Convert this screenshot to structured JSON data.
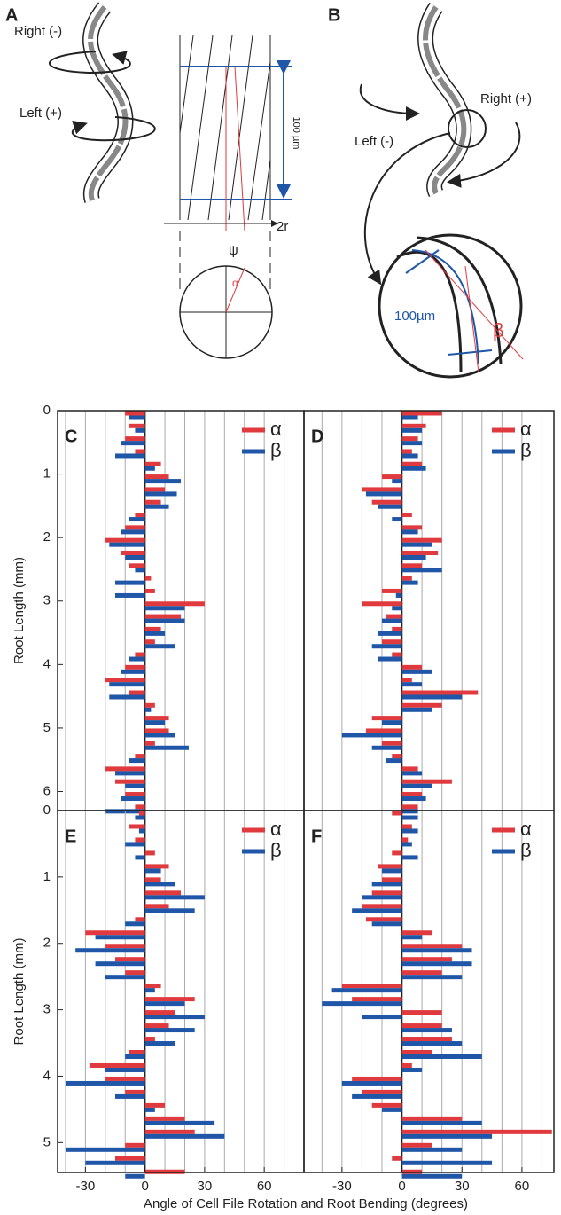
{
  "diagrams": {
    "A": {
      "label": "A",
      "right": "Right (-)",
      "left": "Left (+)",
      "length": "100 µm",
      "diameter": "2r",
      "psi": "ψ",
      "alpha": "α"
    },
    "B": {
      "label": "B",
      "left": "Left (-)",
      "right": "Right (+)",
      "length": "100µm",
      "beta": "β"
    }
  },
  "chart_data": [
    {
      "type": "bar",
      "panel": "C",
      "orientation": "horizontal",
      "x": [
        0,
        0.2,
        0.4,
        0.6,
        0.8,
        1.0,
        1.2,
        1.4,
        1.6,
        1.8,
        2.0,
        2.2,
        2.4,
        2.6,
        2.8,
        3.0,
        3.2,
        3.4,
        3.6,
        3.8,
        4.0,
        4.2,
        4.4,
        4.6,
        4.8,
        5.0,
        5.2,
        5.4,
        5.6,
        5.8,
        6.0,
        6.2
      ],
      "series": [
        {
          "name": "α",
          "color": "#e03a3e",
          "values": [
            -10,
            -8,
            -10,
            -5,
            8,
            12,
            10,
            8,
            -5,
            -10,
            -20,
            -12,
            -8,
            3,
            5,
            30,
            18,
            8,
            5,
            -5,
            -10,
            -20,
            -8,
            5,
            12,
            12,
            5,
            -5,
            -20,
            -15,
            -10,
            -5
          ]
        },
        {
          "name": "β",
          "color": "#1f56a8",
          "values": [
            -8,
            -5,
            -12,
            -15,
            5,
            18,
            16,
            12,
            -8,
            -12,
            -18,
            -10,
            -5,
            -15,
            -15,
            20,
            20,
            10,
            15,
            -8,
            -12,
            -18,
            -18,
            3,
            10,
            15,
            22,
            -8,
            -15,
            -10,
            -12,
            -20
          ]
        }
      ],
      "xlim": [
        -44,
        80
      ],
      "xgrid": [
        -40,
        -30,
        -20,
        -10,
        10,
        20,
        30,
        40,
        50,
        60,
        70
      ],
      "ylim": [
        0,
        6.3
      ],
      "yticks": [
        0,
        1,
        2,
        3,
        4,
        5,
        6
      ],
      "ylabel": "Root Length (mm)"
    },
    {
      "type": "bar",
      "panel": "D",
      "orientation": "horizontal",
      "x": [
        0,
        0.2,
        0.4,
        0.6,
        0.8,
        1.0,
        1.2,
        1.4,
        1.6,
        1.8,
        2.0,
        2.2,
        2.4,
        2.6,
        2.8,
        3.0,
        3.2,
        3.4,
        3.6,
        3.8,
        4.0,
        4.2,
        4.4,
        4.6,
        4.8,
        5.0,
        5.2,
        5.4,
        5.6,
        5.8,
        6.0,
        6.2
      ],
      "series": [
        {
          "name": "α",
          "color": "#e03a3e",
          "values": [
            20,
            12,
            8,
            5,
            10,
            -10,
            -20,
            -15,
            5,
            10,
            20,
            18,
            10,
            5,
            -10,
            -20,
            -8,
            -5,
            -10,
            -5,
            10,
            5,
            38,
            20,
            -15,
            -18,
            -10,
            -5,
            8,
            25,
            10,
            8
          ]
        },
        {
          "name": "β",
          "color": "#1f56a8",
          "values": [
            8,
            10,
            10,
            8,
            12,
            -5,
            -18,
            -12,
            -5,
            8,
            15,
            12,
            20,
            8,
            -3,
            -5,
            -10,
            -12,
            -15,
            -12,
            15,
            10,
            30,
            15,
            -10,
            -30,
            -15,
            -8,
            10,
            15,
            12,
            8
          ]
        }
      ],
      "xlim": [
        -49,
        76
      ],
      "xgrid": [
        -40,
        -30,
        -20,
        -10,
        10,
        20,
        30,
        40,
        50,
        60,
        70
      ],
      "ylim": [
        0,
        6.3
      ]
    },
    {
      "type": "bar",
      "panel": "E",
      "orientation": "horizontal",
      "x": [
        0,
        0.2,
        0.4,
        0.6,
        0.8,
        1.0,
        1.2,
        1.4,
        1.6,
        1.8,
        2.0,
        2.2,
        2.4,
        2.6,
        2.8,
        3.0,
        3.2,
        3.4,
        3.6,
        3.8,
        4.0,
        4.2,
        4.4,
        4.6,
        4.8,
        5.0,
        5.2,
        5.4
      ],
      "series": [
        {
          "name": "α",
          "color": "#e03a3e",
          "values": [
            -3,
            -8,
            -5,
            5,
            12,
            8,
            18,
            12,
            -5,
            -30,
            -20,
            -15,
            -10,
            8,
            25,
            15,
            12,
            5,
            -8,
            -28,
            -20,
            -10,
            10,
            20,
            25,
            -10,
            -15,
            20
          ]
        },
        {
          "name": "β",
          "color": "#1f56a8",
          "values": [
            -5,
            -3,
            -10,
            -5,
            8,
            15,
            30,
            25,
            -10,
            -25,
            -35,
            -25,
            -20,
            5,
            20,
            30,
            25,
            15,
            -10,
            -20,
            -40,
            -15,
            5,
            35,
            40,
            -40,
            -30,
            -10
          ]
        }
      ],
      "xlim": [
        -44,
        80
      ],
      "xticks": [
        -30,
        0,
        30,
        60
      ],
      "xgrid": [
        -40,
        -30,
        -20,
        -10,
        10,
        20,
        30,
        40,
        50,
        60,
        70
      ],
      "ylim": [
        0,
        5.45
      ],
      "yticks": [
        0,
        1,
        2,
        3,
        4,
        5
      ],
      "ylabel": "Root Length (mm)",
      "xlabel": "Angle of Cell File Rotation and Root Bending (degrees)"
    },
    {
      "type": "bar",
      "panel": "F",
      "orientation": "horizontal",
      "x": [
        0,
        0.2,
        0.4,
        0.6,
        0.8,
        1.0,
        1.2,
        1.4,
        1.6,
        1.8,
        2.0,
        2.2,
        2.4,
        2.6,
        2.8,
        3.0,
        3.2,
        3.4,
        3.6,
        3.8,
        4.0,
        4.2,
        4.4,
        4.6,
        4.8,
        5.0,
        5.2,
        5.4
      ],
      "series": [
        {
          "name": "α",
          "color": "#e03a3e",
          "values": [
            -5,
            5,
            3,
            -5,
            -12,
            -10,
            -15,
            -20,
            -18,
            15,
            30,
            25,
            20,
            -30,
            -25,
            20,
            20,
            25,
            15,
            5,
            -25,
            -20,
            -15,
            30,
            75,
            15,
            -5,
            10
          ]
        },
        {
          "name": "β",
          "color": "#1f56a8",
          "values": [
            8,
            8,
            5,
            8,
            -10,
            -15,
            -20,
            -25,
            -15,
            10,
            35,
            35,
            30,
            -35,
            -40,
            -20,
            25,
            30,
            40,
            10,
            -30,
            -25,
            -10,
            40,
            45,
            30,
            45,
            30
          ]
        }
      ],
      "xlim": [
        -49,
        76
      ],
      "xticks": [
        -30,
        0,
        30,
        60
      ],
      "xgrid": [
        -40,
        -30,
        -20,
        -10,
        10,
        20,
        30,
        40,
        50,
        60,
        70
      ],
      "ylim": [
        0,
        5.45
      ]
    }
  ]
}
